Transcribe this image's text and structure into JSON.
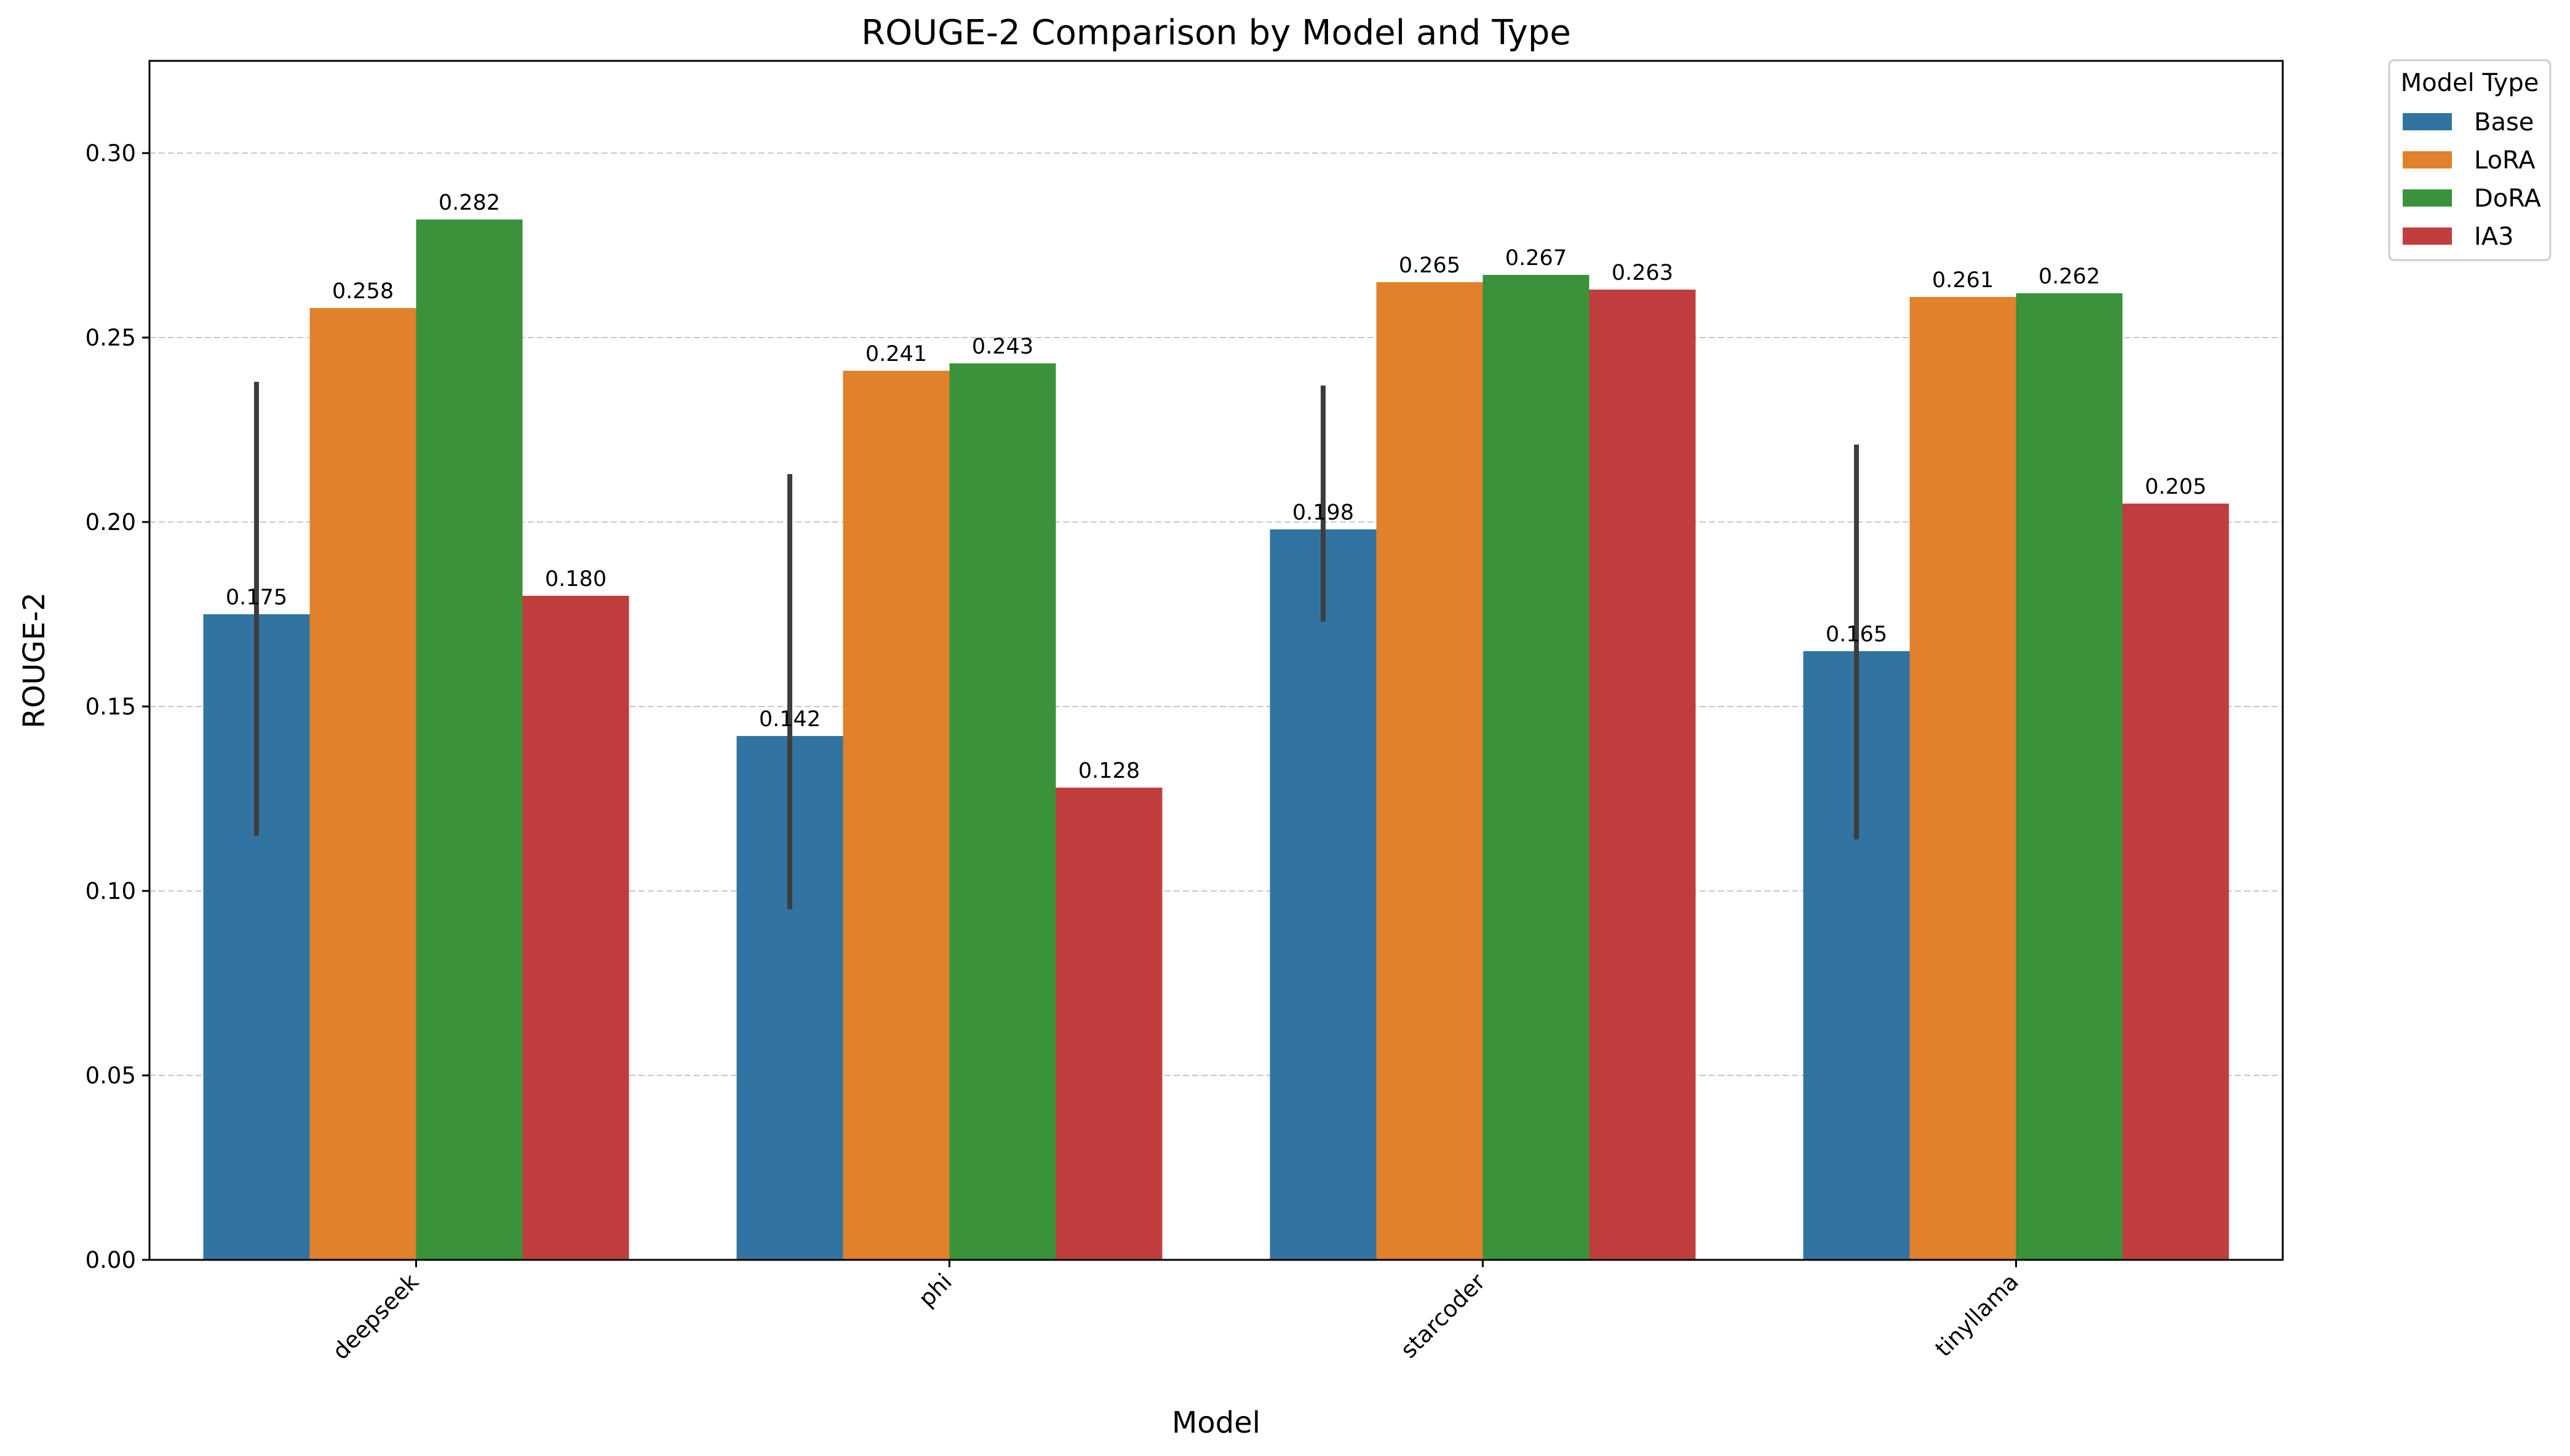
{
  "chart_data": {
    "type": "bar",
    "title": "ROUGE-2 Comparison by Model and Type",
    "xlabel": "Model",
    "ylabel": "ROUGE-2",
    "categories": [
      "deepseek",
      "phi",
      "starcoder",
      "tinyllama"
    ],
    "ylim": [
      0,
      0.325
    ],
    "yticks": [
      "0.00",
      "0.05",
      "0.10",
      "0.15",
      "0.20",
      "0.25",
      "0.30"
    ],
    "grid": "horizontal dashed",
    "legend": {
      "title": "Model Type",
      "placement": "outside top-right"
    },
    "series": [
      {
        "name": "Base",
        "color": "#3274a1",
        "values": [
          0.175,
          0.142,
          0.198,
          0.165
        ],
        "labels": [
          "0.175",
          "0.142",
          "0.198",
          "0.165"
        ],
        "error_low": [
          0.115,
          0.095,
          0.173,
          0.114
        ],
        "error_high": [
          0.238,
          0.213,
          0.237,
          0.221
        ]
      },
      {
        "name": "LoRA",
        "color": "#e1812c",
        "values": [
          0.258,
          0.241,
          0.265,
          0.261
        ],
        "labels": [
          "0.258",
          "0.241",
          "0.265",
          "0.261"
        ]
      },
      {
        "name": "DoRA",
        "color": "#3a923a",
        "values": [
          0.282,
          0.243,
          0.267,
          0.262
        ],
        "labels": [
          "0.282",
          "0.243",
          "0.267",
          "0.262"
        ]
      },
      {
        "name": "IA3",
        "color": "#c03d3e",
        "values": [
          0.18,
          0.128,
          0.263,
          0.205
        ],
        "labels": [
          "0.180",
          "0.128",
          "0.263",
          "0.205"
        ]
      }
    ]
  }
}
